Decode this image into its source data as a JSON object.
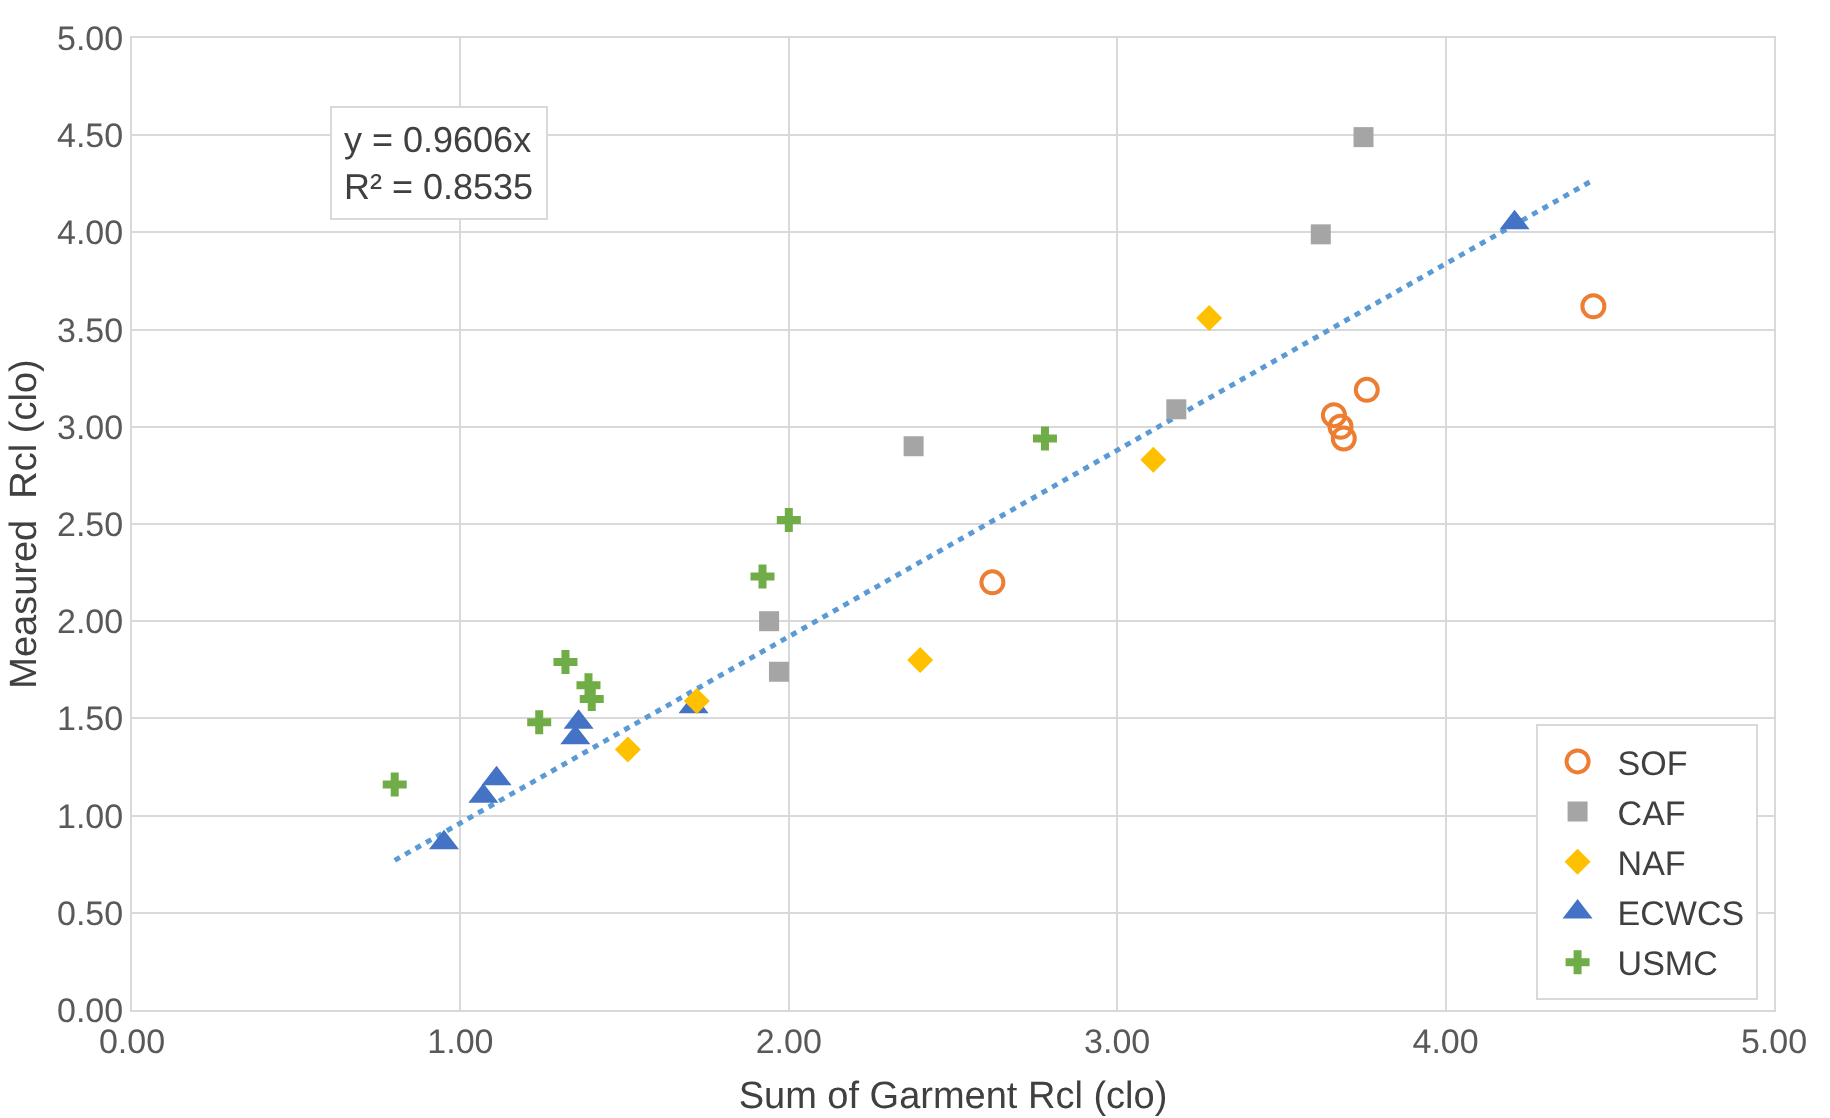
{
  "chart_data": {
    "type": "scatter",
    "xlabel": "Sum of Garment Rcl (clo)",
    "ylabel": "Measured  Rcl (clo)",
    "xlim": [
      0,
      5
    ],
    "xticks": [
      {
        "value": 0,
        "label": "0.00"
      },
      {
        "value": 1,
        "label": "1.00"
      },
      {
        "value": 2,
        "label": "2.00"
      },
      {
        "value": 3,
        "label": "3.00"
      },
      {
        "value": 4,
        "label": "4.00"
      },
      {
        "value": 5,
        "label": "5.00"
      }
    ],
    "ylim": [
      0,
      5
    ],
    "yticks": [
      {
        "value": 0,
        "label": "0.00"
      },
      {
        "value": 0.5,
        "label": "0.50"
      },
      {
        "value": 1,
        "label": "1.00"
      },
      {
        "value": 1.5,
        "label": "1.50"
      },
      {
        "value": 2,
        "label": "2.00"
      },
      {
        "value": 2.5,
        "label": "2.50"
      },
      {
        "value": 3,
        "label": "3.00"
      },
      {
        "value": 3.5,
        "label": "3.50"
      },
      {
        "value": 4,
        "label": "4.00"
      },
      {
        "value": 4.5,
        "label": "4.50"
      },
      {
        "value": 5,
        "label": "5.00"
      }
    ],
    "grid": true,
    "legend": "bottom right",
    "annotations": [
      "y = 0.9606x\nR² = 0.8535"
    ],
    "series": [
      {
        "name": "SOF",
        "color": "#ed7d31",
        "marker": "circle",
        "x": [
          4.45,
          3.76,
          3.66,
          3.68,
          3.69,
          2.62
        ],
        "values": [
          3.62,
          3.19,
          3.06,
          3.0,
          2.94,
          2.2
        ]
      },
      {
        "name": "CAF",
        "color": "#a5a5a5",
        "marker": "square",
        "x": [
          3.75,
          3.62,
          3.18,
          2.38,
          1.94,
          1.97
        ],
        "values": [
          4.49,
          3.99,
          3.09,
          2.9,
          2.0,
          1.74
        ]
      },
      {
        "name": "NAF",
        "color": "#ffc000",
        "marker": "diamond",
        "x": [
          3.28,
          3.11,
          2.4,
          1.51,
          1.72
        ],
        "values": [
          3.56,
          2.83,
          1.8,
          1.34,
          1.59
        ]
      },
      {
        "name": "ECWCS",
        "color": "#4472c4",
        "marker": "triangle",
        "x": [
          0.95,
          1.07,
          1.11,
          1.36,
          1.35,
          1.71,
          4.21
        ],
        "values": [
          0.86,
          1.1,
          1.19,
          1.48,
          1.4,
          1.56,
          4.05
        ]
      },
      {
        "name": "USMC",
        "color": "#70ad47",
        "marker": "cross",
        "x": [
          0.8,
          1.24,
          1.32,
          1.39,
          1.4,
          1.92,
          2.0,
          2.78
        ],
        "values": [
          1.16,
          1.48,
          1.79,
          1.67,
          1.6,
          2.23,
          2.52,
          2.94
        ]
      },
      {
        "type": "line",
        "color": "#5b9bd5",
        "line_style": "dotted",
        "marker": "none",
        "x": [
          0.8,
          4.45
        ],
        "values": [
          0.77,
          4.27
        ]
      }
    ]
  }
}
